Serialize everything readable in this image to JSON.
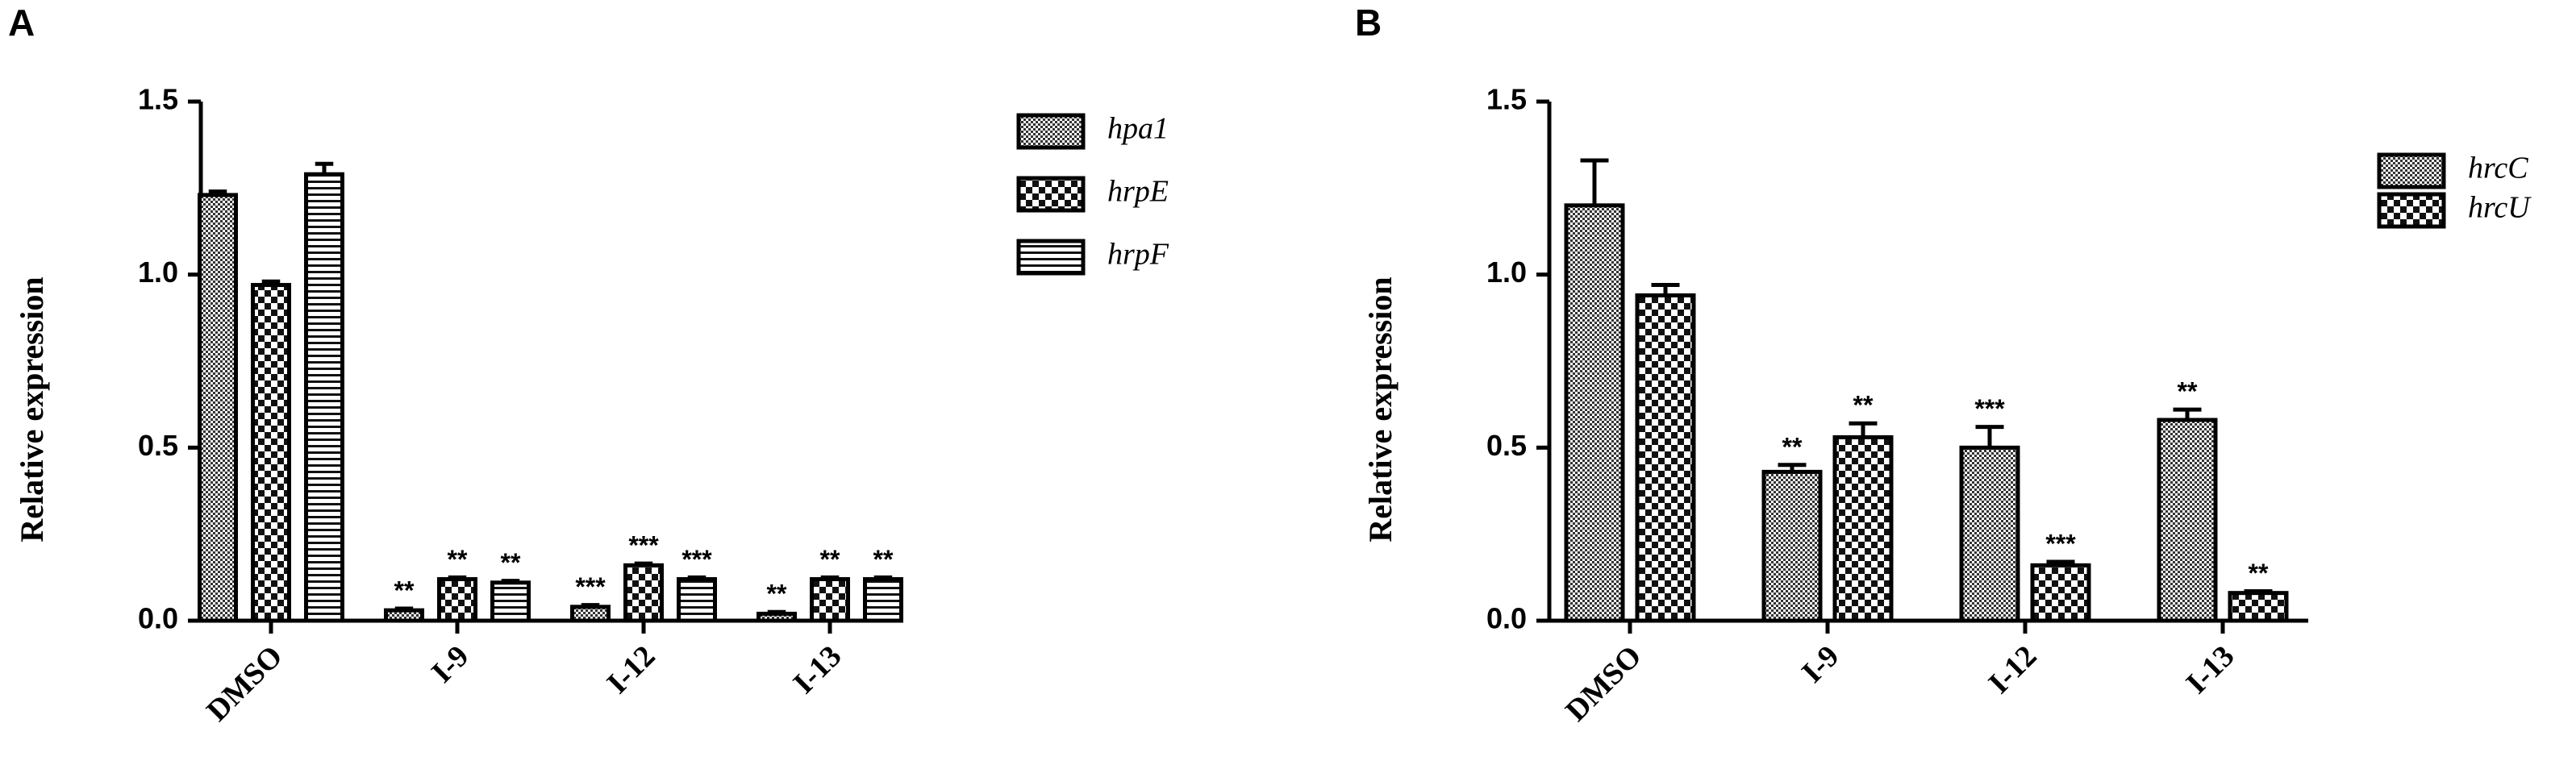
{
  "chart_data": [
    {
      "type": "bar",
      "panel": "A",
      "ylabel": "Relative expression",
      "categories": [
        "DMSO",
        "I-9",
        "I-12",
        "I-13"
      ],
      "ylim": [
        0,
        1.5
      ],
      "yticks": [
        {
          "value": 0,
          "label": "0.0"
        },
        0.5,
        {
          "value": 1,
          "label": "1.0"
        },
        1.5
      ],
      "series": [
        {
          "name": "hpa1",
          "pattern": "dots",
          "values": [
            1.23,
            0.03,
            0.04,
            0.02
          ],
          "errors": [
            0.01,
            0.005,
            0.005,
            0.005
          ],
          "annotations": [
            null,
            "**",
            "***",
            "**"
          ]
        },
        {
          "name": "hrpE",
          "pattern": "checker",
          "values": [
            0.97,
            0.12,
            0.16,
            0.12
          ],
          "errors": [
            0.01,
            0.005,
            0.005,
            0.005
          ],
          "annotations": [
            null,
            "**",
            "***",
            "**"
          ]
        },
        {
          "name": "hrpF",
          "pattern": "hlines",
          "values": [
            1.29,
            0.11,
            0.12,
            0.12
          ],
          "errors": [
            0.03,
            0.005,
            0.005,
            0.005
          ],
          "annotations": [
            null,
            "**",
            "***",
            "**"
          ]
        }
      ]
    },
    {
      "type": "bar",
      "panel": "B",
      "ylabel": "Relative expression",
      "categories": [
        "DMSO",
        "I-9",
        "I-12",
        "I-13"
      ],
      "ylim": [
        0,
        1.5
      ],
      "yticks": [
        {
          "value": 0,
          "label": "0.0"
        },
        0.5,
        {
          "value": 1,
          "label": "1.0"
        },
        1.5
      ],
      "series": [
        {
          "name": "hrcC",
          "pattern": "dots",
          "values": [
            1.2,
            0.43,
            0.5,
            0.58
          ],
          "errors": [
            0.13,
            0.02,
            0.06,
            0.03
          ],
          "annotations": [
            null,
            "**",
            "***",
            "**"
          ]
        },
        {
          "name": "hrcU",
          "pattern": "checker",
          "values": [
            0.94,
            0.53,
            0.16,
            0.08
          ],
          "errors": [
            0.03,
            0.04,
            0.01,
            0.005
          ],
          "annotations": [
            null,
            "**",
            "***",
            "**"
          ]
        }
      ]
    }
  ]
}
